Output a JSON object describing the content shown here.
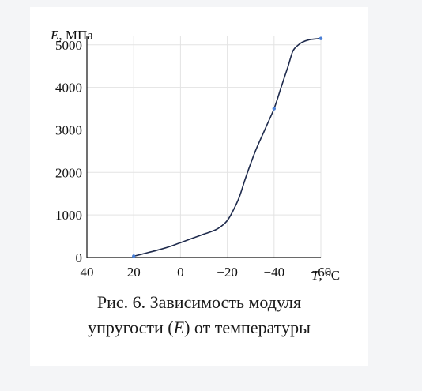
{
  "chart_data": {
    "type": "line",
    "y_axis_title": {
      "symbol": "E",
      "unit": ", МПа"
    },
    "x_axis_title": {
      "symbol": "T",
      "unit": ", °C"
    },
    "x_ticks": [
      "40",
      "20",
      "0",
      "−20",
      "−40",
      "−60"
    ],
    "x_tick_values": [
      40,
      20,
      0,
      -20,
      -40,
      -60
    ],
    "y_ticks": [
      "0",
      "1000",
      "2000",
      "3000",
      "4000",
      "5000"
    ],
    "y_tick_values": [
      0,
      1000,
      2000,
      3000,
      4000,
      5000
    ],
    "xlim": [
      40,
      -60
    ],
    "ylim": [
      0,
      5200
    ],
    "grid": true,
    "line_color": "#1f2b4d",
    "marker_color": "#4a7fd6",
    "series": [
      {
        "x": [
          20,
          15,
          10,
          5,
          0,
          -5,
          -10,
          -15,
          -18,
          -20,
          -22,
          -25,
          -28,
          -32,
          -36,
          -40,
          -43,
          -46,
          -48,
          -50,
          -52,
          -55,
          -58,
          -60
        ],
        "y": [
          30,
          100,
          170,
          250,
          350,
          450,
          550,
          650,
          760,
          870,
          1050,
          1400,
          1900,
          2500,
          3000,
          3500,
          4000,
          4500,
          4850,
          4980,
          5060,
          5120,
          5140,
          5150
        ],
        "markers_x": [
          20,
          -40,
          -60
        ],
        "markers_y": [
          30,
          3500,
          5150
        ]
      }
    ]
  },
  "caption": {
    "line1": "Рис. 6. Зависимость модуля",
    "line2_before": "упругости (",
    "line2_symbol": "E",
    "line2_after": ") от температуры"
  }
}
